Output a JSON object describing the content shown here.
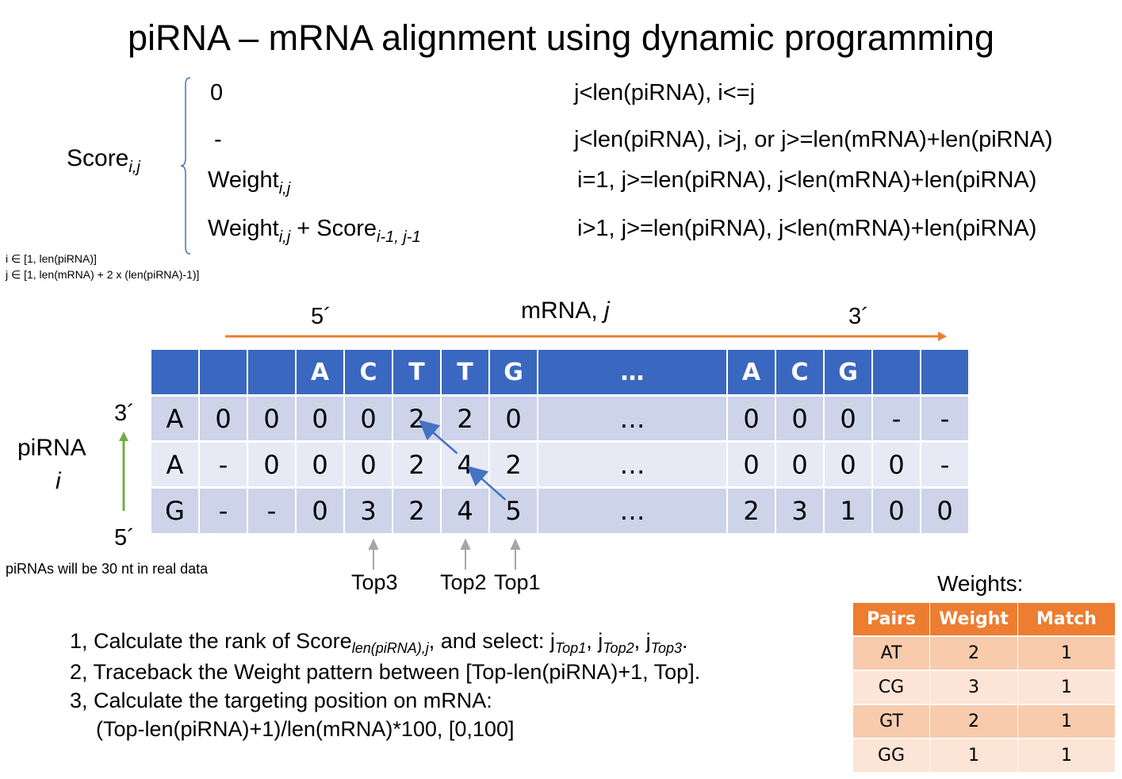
{
  "title": "piRNA – mRNA alignment using dynamic programming",
  "formula": {
    "lhs": "Score",
    "lhs_sub": "i,j",
    "cases": [
      {
        "expr": "0",
        "cond": "j<len(piRNA), i<=j"
      },
      {
        "expr": "-",
        "cond": "j<len(piRNA), i>j, or j>=len(mRNA)+len(piRNA)"
      },
      {
        "expr": "Weight",
        "expr_sub": "i,j",
        "cond": "i=1, j>=len(piRNA), j<len(mRNA)+len(piRNA)"
      },
      {
        "expr": "Weight",
        "expr_sub": "i,j",
        "expr2": " + Score",
        "expr2_sub": "i-1, j-1",
        "cond": "i>1, j>=len(piRNA), j<len(mRNA)+len(piRNA)"
      }
    ],
    "domain_i": "i ∈ [1, len(piRNA)]",
    "domain_j": "j ∈ [1, len(mRNA) + 2 x (len(piRNA)-1)]"
  },
  "mrna_axis": {
    "label": "mRNA, ",
    "label_var": "j",
    "five": "5´",
    "three": "3´",
    "color": "#ed7d31"
  },
  "pirna_axis": {
    "label": "piRNA",
    "label_var": "i",
    "three": "3´",
    "five": "5´",
    "color": "#70ad47"
  },
  "matrix": {
    "header": [
      "",
      "",
      "",
      "A",
      "C",
      "T",
      "T",
      "G",
      "…",
      "A",
      "C",
      "G",
      "",
      ""
    ],
    "rows": [
      [
        "A",
        "0",
        "0",
        "0",
        "0",
        "2",
        "2",
        "0",
        "…",
        "0",
        "0",
        "0",
        "-",
        "-"
      ],
      [
        "A",
        "-",
        "0",
        "0",
        "0",
        "2",
        "4",
        "2",
        "…",
        "0",
        "0",
        "0",
        "0",
        "-"
      ],
      [
        "G",
        "-",
        "-",
        "0",
        "3",
        "2",
        "4",
        "5",
        "…",
        "2",
        "3",
        "1",
        "0",
        "0"
      ]
    ],
    "header_color": "#3a67c0",
    "traceback_color": "#4472c4"
  },
  "tops": [
    "Top3",
    "Top2",
    "Top1"
  ],
  "note": "piRNAs will be 30 nt in real data",
  "weights": {
    "caption": "Weights:",
    "columns": [
      "Pairs",
      "Weight",
      "Match"
    ],
    "rows": [
      [
        "AT",
        "2",
        "1"
      ],
      [
        "CG",
        "3",
        "1"
      ],
      [
        "GT",
        "2",
        "1"
      ],
      [
        "GG",
        "1",
        "1"
      ]
    ],
    "header_color": "#ed7d31"
  },
  "steps": {
    "s1_a": "1, Calculate the rank of Score",
    "s1_sub": "len(piRNA),j",
    "s1_b": ", and select: j",
    "s1_t1": "Top1",
    "s1_c": ", j",
    "s1_t2": "Top2",
    "s1_d": ", j",
    "s1_t3": "Top3",
    "s1_e": ".",
    "s2": "2, Traceback the Weight pattern between [Top-len(piRNA)+1, Top].",
    "s3": "3, Calculate the targeting position on mRNA:",
    "s3b": "(Top-len(piRNA)+1)/len(mRNA)*100, [0,100]"
  }
}
